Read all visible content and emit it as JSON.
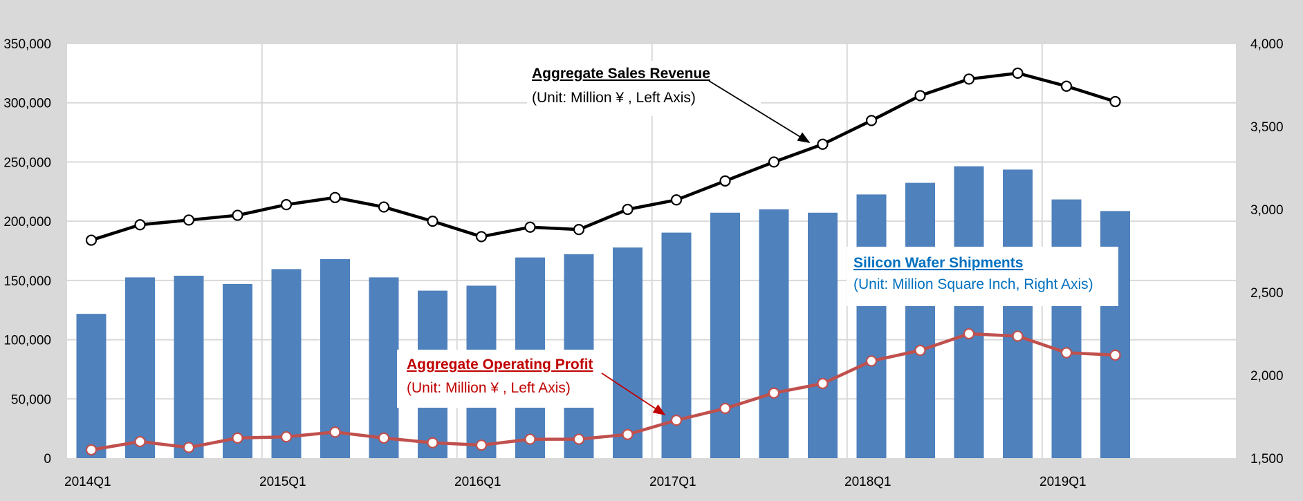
{
  "chart_data": {
    "type": "bar+line",
    "categories": [
      "2014Q1",
      "2014Q2",
      "2014Q3",
      "2014Q4",
      "2015Q1",
      "2015Q2",
      "2015Q3",
      "2015Q4",
      "2016Q1",
      "2016Q2",
      "2016Q3",
      "2016Q4",
      "2017Q1",
      "2017Q2",
      "2017Q3",
      "2017Q4",
      "2018Q1",
      "2018Q2",
      "2018Q3",
      "2018Q4",
      "2019Q1",
      "2019Q2"
    ],
    "x_tick_labels": [
      "2014Q1",
      "2015Q1",
      "2016Q1",
      "2017Q1",
      "2018Q1",
      "2019Q1"
    ],
    "left_axis": {
      "min": 0,
      "max": 350000,
      "ticks": [
        "0",
        "50,000",
        "100,000",
        "150,000",
        "200,000",
        "250,000",
        "300,000",
        "350,000"
      ]
    },
    "right_axis": {
      "min": 1500,
      "max": 4000,
      "ticks": [
        "1,500",
        "2,000",
        "2,500",
        "3,000",
        "3,500",
        "4,000"
      ]
    },
    "grid": true,
    "series": [
      {
        "name": "Silicon Wafer Shipments",
        "kind": "bar",
        "axis": "right",
        "color": "#4f81bd",
        "values": [
          2370,
          2590,
          2600,
          2550,
          2640,
          2700,
          2590,
          2510,
          2540,
          2710,
          2730,
          2770,
          2860,
          2980,
          3000,
          2980,
          3090,
          3160,
          3260,
          3240,
          3060,
          2990
        ]
      },
      {
        "name": "Aggregate Sales Revenue",
        "kind": "line",
        "axis": "left",
        "color": "#000000",
        "values": [
          184000,
          197000,
          201000,
          205000,
          214000,
          220000,
          212000,
          200000,
          187000,
          195000,
          193000,
          210000,
          218000,
          234000,
          250000,
          265000,
          285000,
          306000,
          320000,
          325000,
          314000,
          301000
        ]
      },
      {
        "name": "Aggregate Operating Profit",
        "kind": "line",
        "axis": "left",
        "color": "#c0504d",
        "values": [
          7000,
          14000,
          9000,
          17000,
          18000,
          22000,
          17000,
          13000,
          11000,
          16000,
          16000,
          20000,
          32000,
          42000,
          55000,
          63000,
          82000,
          91000,
          105000,
          103000,
          89000,
          87000
        ]
      }
    ],
    "annotations": [
      {
        "title": "Aggregate Sales Revenue",
        "subtitle": "(Unit: Million  ¥ , Left Axis)",
        "color": "#000000"
      },
      {
        "title": "Silicon Wafer Shipments",
        "subtitle": "(Unit: Million Square Inch, Right Axis)",
        "color": "#0070c0"
      },
      {
        "title": "Aggregate Operating Profit",
        "subtitle": "(Unit: Million  ¥ , Left Axis)",
        "color": "#c00000"
      }
    ]
  }
}
